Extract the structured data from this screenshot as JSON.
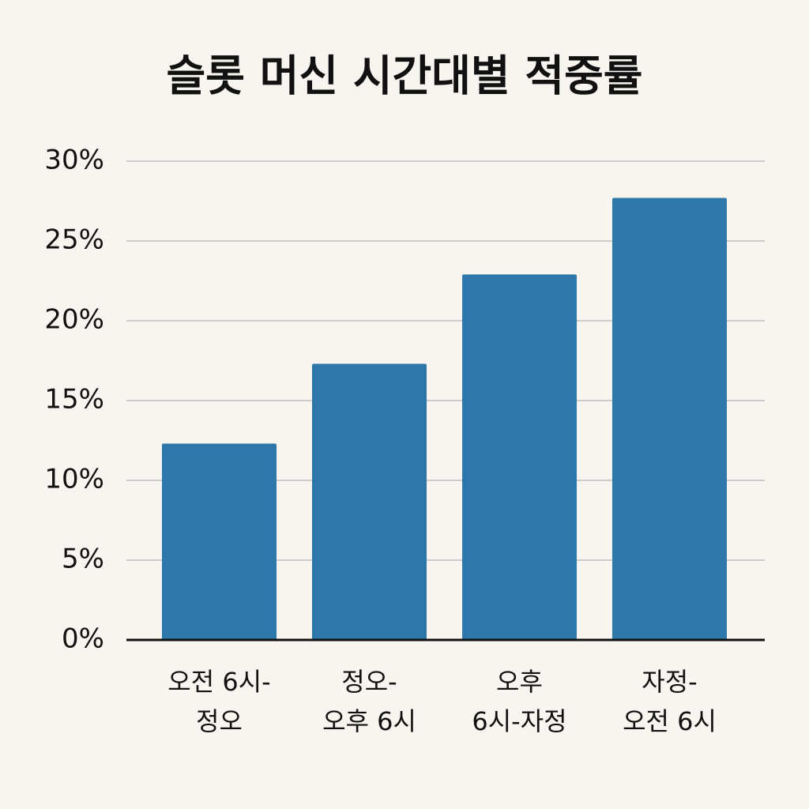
{
  "chart_data": {
    "type": "bar",
    "title": "슬롯 머신 시간대별 적중률",
    "categories": [
      "오전 6시-\n정오",
      "정오-\n오후 6시",
      "오후\n6시-자정",
      "자정-\n오전 6시"
    ],
    "values": [
      12.3,
      17.3,
      22.9,
      27.7
    ],
    "color": "#2e77aa",
    "ylim": [
      0,
      30
    ],
    "yticks": [
      {
        "value": 0,
        "label": "0%"
      },
      {
        "value": 5,
        "label": "5%"
      },
      {
        "value": 10,
        "label": "10%"
      },
      {
        "value": 15,
        "label": "15%"
      },
      {
        "value": 20,
        "label": "20%"
      },
      {
        "value": 25,
        "label": "25%"
      },
      {
        "value": 30,
        "label": "30%"
      }
    ],
    "grid": true
  }
}
